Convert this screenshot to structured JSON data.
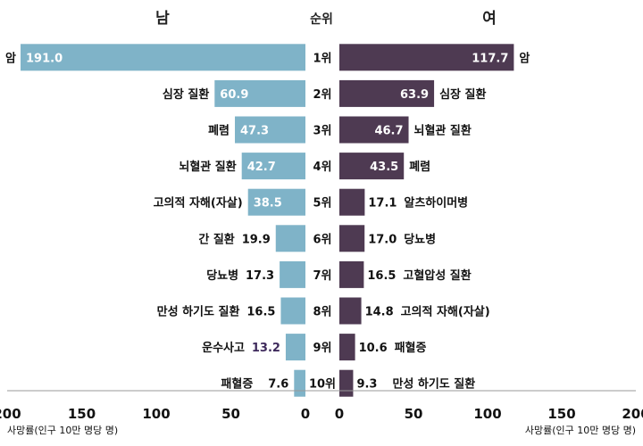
{
  "chart_data": {
    "type": "bar",
    "orientation": "horizontal-butterfly",
    "rank_header": "순위",
    "ranks": [
      "1위",
      "2위",
      "3위",
      "4위",
      "5위",
      "6위",
      "7위",
      "8위",
      "9위",
      "10위"
    ],
    "xlabel": "사망률(인구 10만 명당 명)",
    "xlim": [
      0,
      200
    ],
    "xticks": [
      "0",
      "50",
      "100",
      "150",
      "200"
    ],
    "colors": {
      "male": "#7fb3c8",
      "female": "#4e3a52",
      "special_value": "#3e2a5c"
    },
    "series": [
      {
        "name": "남",
        "categories": [
          "암",
          "심장 질환",
          "폐렴",
          "뇌혈관 질환",
          "고의적 자해(자살)",
          "간 질환",
          "당뇨병",
          "만성 하기도 질환",
          "운수사고",
          "패혈증"
        ],
        "values": [
          191.0,
          60.9,
          47.3,
          42.7,
          38.5,
          19.9,
          17.3,
          16.5,
          13.2,
          7.6
        ],
        "value_labels": [
          "191.0",
          "60.9",
          "47.3",
          "42.7",
          "38.5",
          "19.9",
          "17.3",
          "16.5",
          "13.2",
          "7.6"
        ]
      },
      {
        "name": "여",
        "categories": [
          "암",
          "심장 질환",
          "뇌혈관 질환",
          "폐렴",
          "알츠하이머병",
          "당뇨병",
          "고혈압성 질환",
          "고의적 자해(자살)",
          "패혈증",
          "만성 하기도 질환"
        ],
        "values": [
          117.7,
          63.9,
          46.7,
          43.5,
          17.1,
          17.0,
          16.5,
          14.8,
          10.6,
          9.3
        ],
        "value_labels": [
          "117.7",
          "63.9",
          "46.7",
          "43.5",
          "17.1",
          "17.0",
          "16.5",
          "14.8",
          "10.6",
          "9.3"
        ]
      }
    ]
  }
}
